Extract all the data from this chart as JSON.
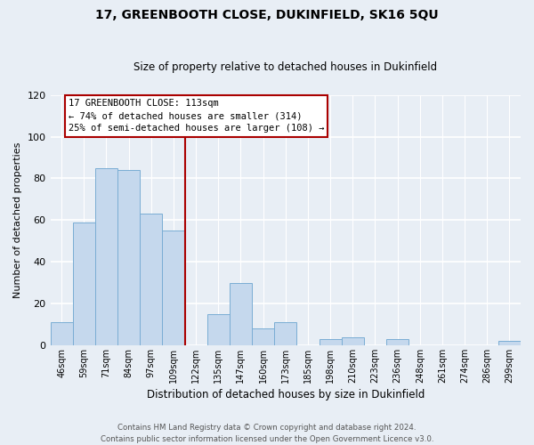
{
  "title": "17, GREENBOOTH CLOSE, DUKINFIELD, SK16 5QU",
  "subtitle": "Size of property relative to detached houses in Dukinfield",
  "xlabel": "Distribution of detached houses by size in Dukinfield",
  "ylabel": "Number of detached properties",
  "bar_labels": [
    "46sqm",
    "59sqm",
    "71sqm",
    "84sqm",
    "97sqm",
    "109sqm",
    "122sqm",
    "135sqm",
    "147sqm",
    "160sqm",
    "173sqm",
    "185sqm",
    "198sqm",
    "210sqm",
    "223sqm",
    "236sqm",
    "248sqm",
    "261sqm",
    "274sqm",
    "286sqm",
    "299sqm"
  ],
  "bar_heights": [
    11,
    59,
    85,
    84,
    63,
    55,
    0,
    15,
    30,
    8,
    11,
    0,
    3,
    4,
    0,
    3,
    0,
    0,
    0,
    0,
    2
  ],
  "bar_color": "#c5d8ed",
  "bar_edge_color": "#7aadd4",
  "vline_color": "#aa0000",
  "annotation_text": "17 GREENBOOTH CLOSE: 113sqm\n← 74% of detached houses are smaller (314)\n25% of semi-detached houses are larger (108) →",
  "annotation_box_color": "#ffffff",
  "annotation_box_edge_color": "#aa0000",
  "ylim": [
    0,
    120
  ],
  "yticks": [
    0,
    20,
    40,
    60,
    80,
    100,
    120
  ],
  "footer_line1": "Contains HM Land Registry data © Crown copyright and database right 2024.",
  "footer_line2": "Contains public sector information licensed under the Open Government Licence v3.0.",
  "bg_color": "#e8eef5"
}
